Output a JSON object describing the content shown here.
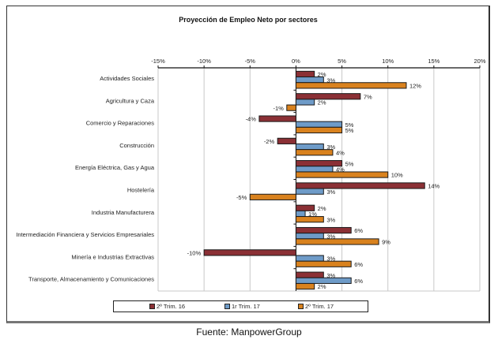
{
  "chart_data": {
    "type": "bar",
    "orientation": "horizontal",
    "title": "Proyección de Empleo Neto por sectores",
    "xlabel": "",
    "ylabel": "",
    "xlim": [
      -15,
      20
    ],
    "x_ticks": [
      "-15%",
      "-10%",
      "-5%",
      "0%",
      "5%",
      "10%",
      "15%",
      "20%"
    ],
    "x_tick_values": [
      -15,
      -10,
      -5,
      0,
      5,
      10,
      15,
      20
    ],
    "grid": true,
    "legend_position": "bottom",
    "categories": [
      "Actividades Sociales",
      "Agricultura y Caza",
      "Comercio y Reparaciones",
      "Construcción",
      "Energía Eléctrica, Gas y Agua",
      "Hostelería",
      "Industria Manufacturera",
      "Intermediación Financiera y Servicios Empresariales",
      "Minería e Industrias Extractivas",
      "Transporte, Almacenamiento y Comunicaciones"
    ],
    "series": [
      {
        "name": "2º Trim. 16",
        "color": "#8B3035",
        "values": [
          2,
          7,
          -4,
          -2,
          5,
          14,
          2,
          6,
          -10,
          3
        ]
      },
      {
        "name": "1r Trim. 17",
        "color": "#6E9BC8",
        "values": [
          3,
          2,
          5,
          3,
          4,
          3,
          1,
          3,
          3,
          6
        ]
      },
      {
        "name": "2º Trim. 17",
        "color": "#D9821E",
        "values": [
          12,
          -1,
          5,
          4,
          10,
          -5,
          3,
          9,
          6,
          2
        ]
      }
    ],
    "value_suffix": "%"
  },
  "source": "Fuente: ManpowerGroup"
}
